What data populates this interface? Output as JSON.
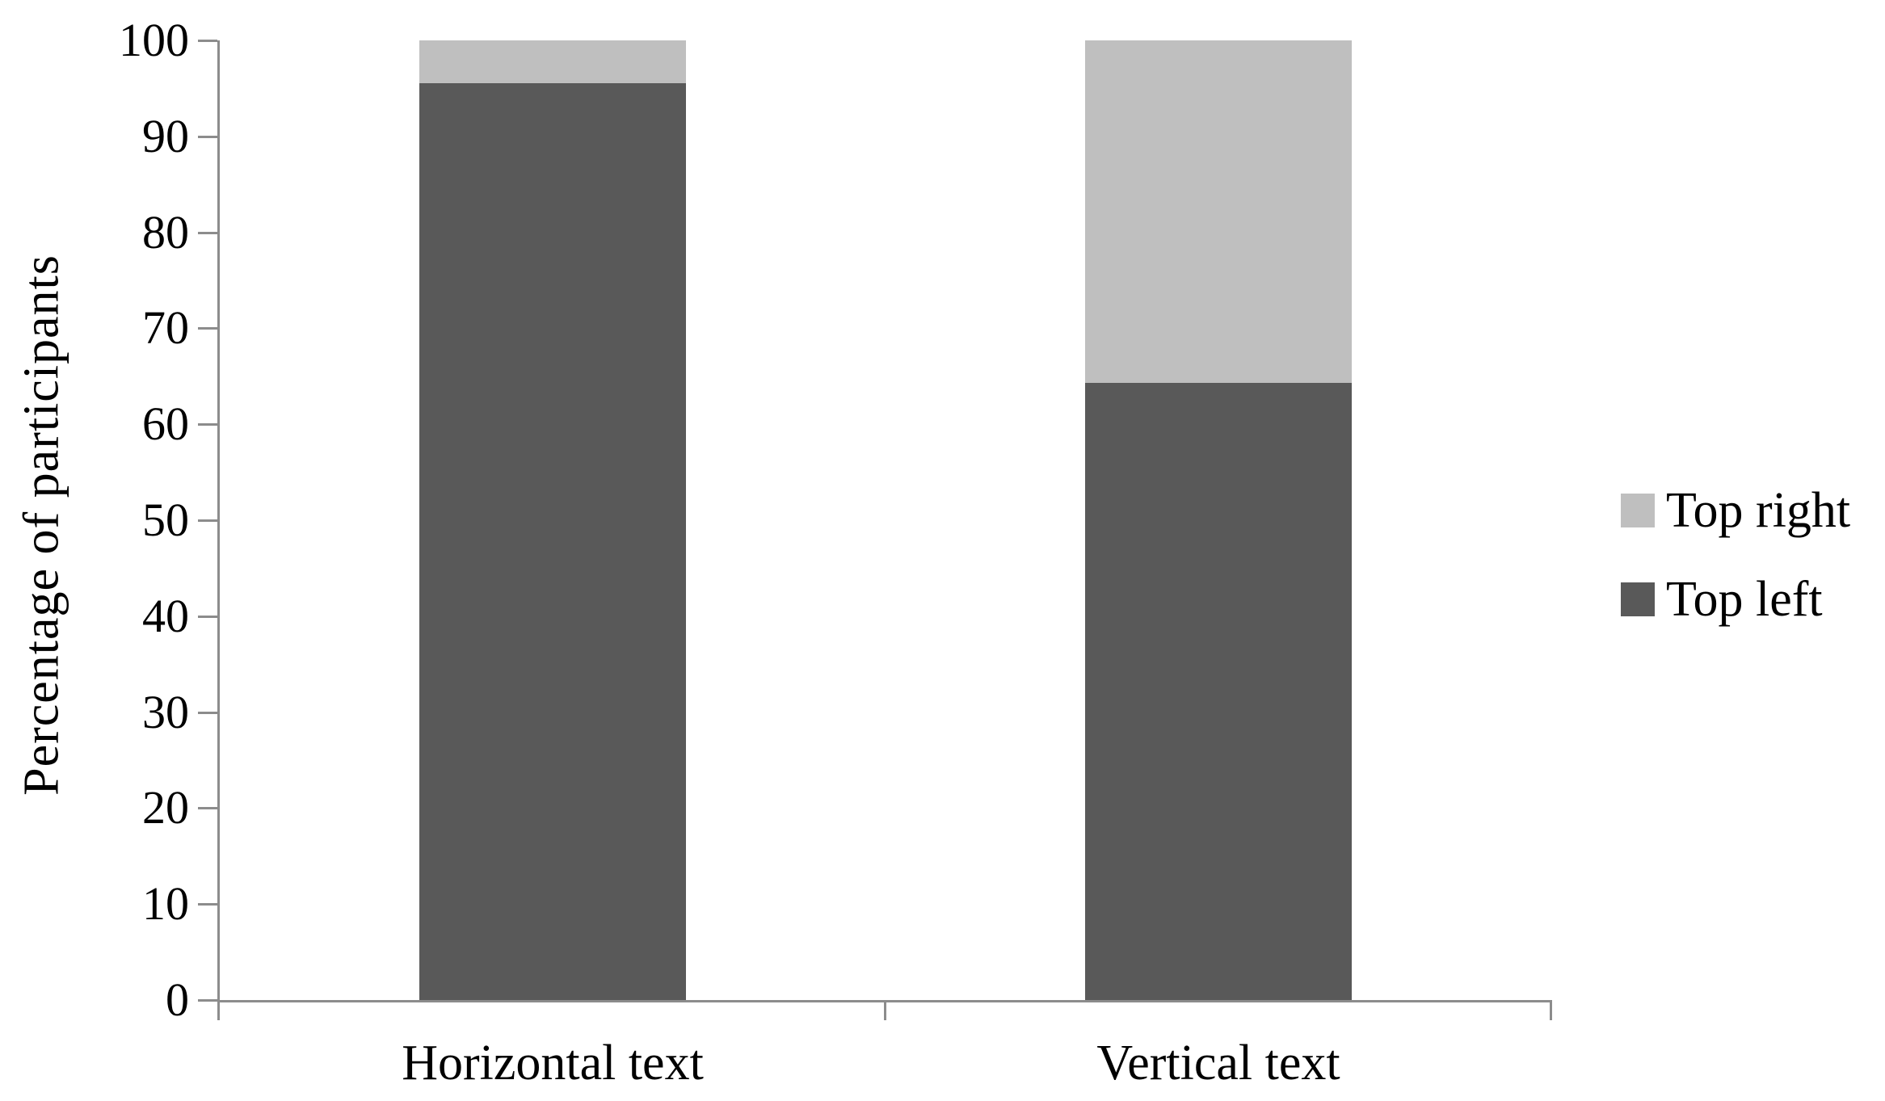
{
  "chart_data": {
    "type": "bar",
    "stacked": true,
    "title": "",
    "ylabel": "Percentage of participants",
    "xlabel": "",
    "ylim": [
      0,
      100
    ],
    "yticks": [
      0,
      10,
      20,
      30,
      40,
      50,
      60,
      70,
      80,
      90,
      100
    ],
    "grid": false,
    "categories": [
      "Horizontal text",
      "Vertical text"
    ],
    "series": [
      {
        "name": "Top left",
        "color": "#595959",
        "values": [
          95.5,
          64.3
        ]
      },
      {
        "name": "Top right",
        "color": "#bfbfbf",
        "values": [
          4.5,
          35.7
        ]
      }
    ],
    "legend": {
      "position": "right",
      "entries": [
        "Top right",
        "Top left"
      ]
    },
    "axis_color": "#8c8c8c",
    "text_color": "#000000",
    "background_color": "#ffffff"
  }
}
